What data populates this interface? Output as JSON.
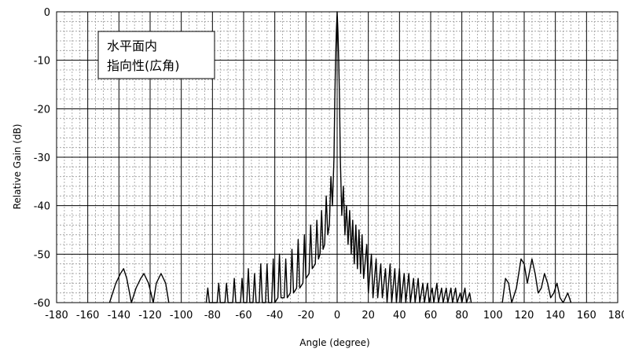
{
  "chart_data": {
    "type": "line",
    "title": "",
    "xlabel": "Angle (degree)",
    "ylabel": "Relative Gain (dB)",
    "xlim": [
      -180,
      180
    ],
    "ylim": [
      -60,
      0
    ],
    "x_ticks": [
      -180,
      -160,
      -140,
      -120,
      -100,
      -80,
      -60,
      -40,
      -20,
      0,
      20,
      40,
      60,
      80,
      100,
      120,
      140,
      160,
      180
    ],
    "y_ticks": [
      0,
      -10,
      -20,
      -30,
      -40,
      -50,
      -60
    ],
    "annotation": [
      "水平面内",
      "指向性(広角)"
    ],
    "grid": true,
    "legend": "none",
    "series": [
      {
        "color": "#000000",
        "points": [
          [
            -146,
            -60
          ],
          [
            -142,
            -56
          ],
          [
            -139,
            -54
          ],
          [
            -137,
            -53
          ],
          [
            -135,
            -55
          ],
          [
            -132,
            -60
          ],
          [
            -129,
            -57
          ],
          [
            -126,
            -55
          ],
          [
            -124,
            -54
          ],
          [
            -121,
            -56
          ],
          [
            -118,
            -60
          ],
          [
            -116,
            -56
          ],
          [
            -113,
            -54
          ],
          [
            -110,
            -56
          ],
          [
            -108,
            -60
          ],
          [
            -84,
            -60
          ],
          [
            -83,
            -57
          ],
          [
            -82,
            -60
          ],
          [
            -77,
            -60
          ],
          [
            -76,
            -56
          ],
          [
            -75,
            -60
          ],
          [
            -72,
            -60
          ],
          [
            -71,
            -56
          ],
          [
            -70,
            -60
          ],
          [
            -67,
            -60
          ],
          [
            -66,
            -55
          ],
          [
            -65,
            -60
          ],
          [
            -62,
            -60
          ],
          [
            -61,
            -55
          ],
          [
            -60,
            -60
          ],
          [
            -58,
            -60
          ],
          [
            -57,
            -53
          ],
          [
            -56,
            -60
          ],
          [
            -54,
            -60
          ],
          [
            -53,
            -54
          ],
          [
            -52,
            -60
          ],
          [
            -50,
            -60
          ],
          [
            -49,
            -52
          ],
          [
            -48,
            -60
          ],
          [
            -46,
            -60
          ],
          [
            -45,
            -52
          ],
          [
            -44,
            -60
          ],
          [
            -42,
            -60
          ],
          [
            -41,
            -51
          ],
          [
            -40,
            -60
          ],
          [
            -38,
            -59
          ],
          [
            -37,
            -50
          ],
          [
            -36,
            -59
          ],
          [
            -34,
            -59
          ],
          [
            -33,
            -51
          ],
          [
            -32,
            -59
          ],
          [
            -30,
            -58
          ],
          [
            -29,
            -49
          ],
          [
            -28,
            -58
          ],
          [
            -26,
            -57
          ],
          [
            -25,
            -47
          ],
          [
            -24,
            -57
          ],
          [
            -22,
            -56
          ],
          [
            -21,
            -46
          ],
          [
            -20,
            -55
          ],
          [
            -18,
            -54
          ],
          [
            -17,
            -44
          ],
          [
            -16,
            -53
          ],
          [
            -14,
            -52
          ],
          [
            -13,
            -43
          ],
          [
            -12,
            -51
          ],
          [
            -11,
            -50
          ],
          [
            -10,
            -41
          ],
          [
            -9,
            -49
          ],
          [
            -8,
            -48
          ],
          [
            -7,
            -38
          ],
          [
            -6,
            -46
          ],
          [
            -5,
            -44
          ],
          [
            -4,
            -34
          ],
          [
            -3,
            -40
          ],
          [
            -2,
            -30
          ],
          [
            -1.5,
            -18
          ],
          [
            -1,
            -10
          ],
          [
            -0.5,
            -4
          ],
          [
            0,
            0
          ],
          [
            0.5,
            -4
          ],
          [
            1,
            -10
          ],
          [
            1.5,
            -18
          ],
          [
            2,
            -30
          ],
          [
            3,
            -42
          ],
          [
            4,
            -36
          ],
          [
            5,
            -46
          ],
          [
            6,
            -40
          ],
          [
            7,
            -48
          ],
          [
            8,
            -41
          ],
          [
            9,
            -50
          ],
          [
            10,
            -43
          ],
          [
            11,
            -52
          ],
          [
            12,
            -44
          ],
          [
            13,
            -53
          ],
          [
            14,
            -45
          ],
          [
            15,
            -54
          ],
          [
            16,
            -46
          ],
          [
            17,
            -55
          ],
          [
            19,
            -48
          ],
          [
            20,
            -58
          ],
          [
            22,
            -50
          ],
          [
            23,
            -59
          ],
          [
            25,
            -51
          ],
          [
            26,
            -59
          ],
          [
            28,
            -52
          ],
          [
            29,
            -59
          ],
          [
            31,
            -53
          ],
          [
            32,
            -60
          ],
          [
            34,
            -52
          ],
          [
            35,
            -60
          ],
          [
            37,
            -53
          ],
          [
            38,
            -60
          ],
          [
            40,
            -53
          ],
          [
            41,
            -60
          ],
          [
            43,
            -54
          ],
          [
            44,
            -60
          ],
          [
            46,
            -54
          ],
          [
            47,
            -60
          ],
          [
            49,
            -55
          ],
          [
            50,
            -60
          ],
          [
            52,
            -55
          ],
          [
            53,
            -60
          ],
          [
            55,
            -56
          ],
          [
            56,
            -60
          ],
          [
            58,
            -56
          ],
          [
            59,
            -60
          ],
          [
            61,
            -57
          ],
          [
            62,
            -60
          ],
          [
            64,
            -56
          ],
          [
            65,
            -60
          ],
          [
            67,
            -57
          ],
          [
            68,
            -60
          ],
          [
            70,
            -57
          ],
          [
            71,
            -60
          ],
          [
            73,
            -57
          ],
          [
            74,
            -60
          ],
          [
            76,
            -57
          ],
          [
            77,
            -60
          ],
          [
            79,
            -58
          ],
          [
            80,
            -60
          ],
          [
            82,
            -57
          ],
          [
            83,
            -60
          ],
          [
            85,
            -58
          ],
          [
            86,
            -60
          ],
          [
            106,
            -60
          ],
          [
            108,
            -55
          ],
          [
            110,
            -56
          ],
          [
            112,
            -60
          ],
          [
            115,
            -57
          ],
          [
            118,
            -51
          ],
          [
            120,
            -52
          ],
          [
            122,
            -56
          ],
          [
            125,
            -51
          ],
          [
            127,
            -54
          ],
          [
            129,
            -58
          ],
          [
            131,
            -57
          ],
          [
            133,
            -54
          ],
          [
            135,
            -56
          ],
          [
            137,
            -59
          ],
          [
            139,
            -58
          ],
          [
            141,
            -56
          ],
          [
            143,
            -59
          ],
          [
            145,
            -60
          ],
          [
            148,
            -58
          ],
          [
            150,
            -60
          ]
        ]
      }
    ]
  }
}
